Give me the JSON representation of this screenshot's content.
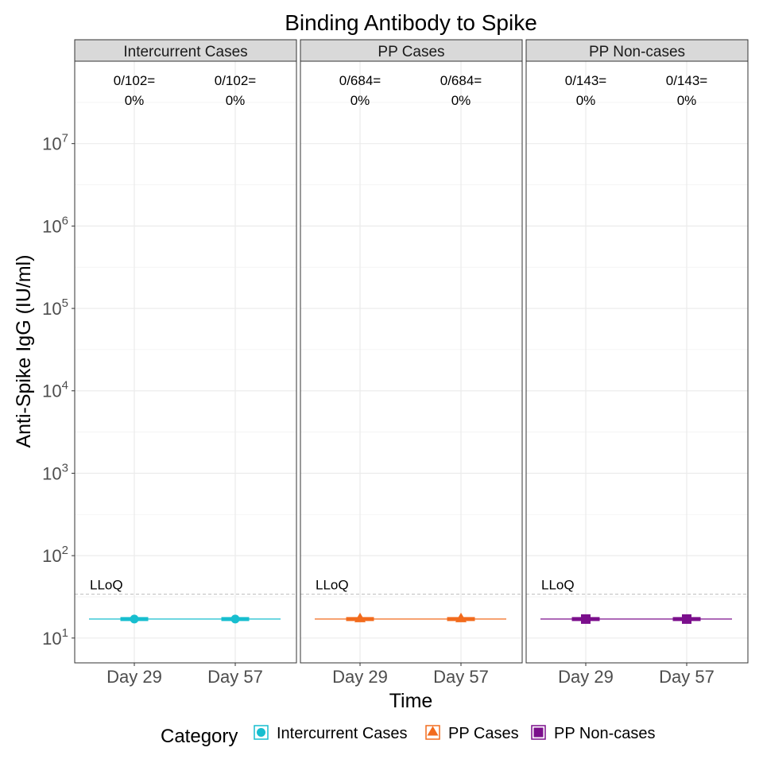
{
  "chart_data": {
    "type": "box",
    "title": "Binding Antibody to Spike",
    "xlabel": "Time",
    "ylabel": "Anti-Spike IgG (IU/ml)",
    "yscale": "log10",
    "ylim": [
      5.0,
      100000000.0
    ],
    "y_ticks": [
      {
        "value": 10,
        "base": "10",
        "exp": "1"
      },
      {
        "value": 100,
        "base": "10",
        "exp": "2"
      },
      {
        "value": 1000,
        "base": "10",
        "exp": "3"
      },
      {
        "value": 10000,
        "base": "10",
        "exp": "4"
      },
      {
        "value": 100000,
        "base": "10",
        "exp": "5"
      },
      {
        "value": 1000000,
        "base": "10",
        "exp": "6"
      },
      {
        "value": 10000000,
        "base": "10",
        "exp": "7"
      }
    ],
    "categories": [
      "Day 29",
      "Day 57"
    ],
    "lloq": {
      "value": 34,
      "label": "LLoQ"
    },
    "grid": true,
    "legend": {
      "title": "Category",
      "position": "bottom",
      "items": [
        {
          "name": "Intercurrent Cases",
          "color": "#17becf",
          "shape": "circle"
        },
        {
          "name": "PP Cases",
          "color": "#f26b1d",
          "shape": "triangle"
        },
        {
          "name": "PP Non-cases",
          "color": "#7b0f8c",
          "shape": "square"
        }
      ]
    },
    "panels": [
      {
        "label": "Intercurrent Cases",
        "color": "#17becf",
        "shape": "circle",
        "response_lines": [
          "0/102=",
          "0%"
        ],
        "response_line2": "0%",
        "boxes": [
          {
            "x": "Day 29",
            "min": 17,
            "q1": 17,
            "median": 17,
            "q3": 17,
            "max": 17
          },
          {
            "x": "Day 57",
            "min": 17,
            "q1": 17,
            "median": 17,
            "q3": 17,
            "max": 17
          }
        ]
      },
      {
        "label": "PP Cases",
        "color": "#f26b1d",
        "shape": "triangle",
        "response_lines": [
          "0/684=",
          "0%"
        ],
        "boxes": [
          {
            "x": "Day 29",
            "min": 17,
            "q1": 17,
            "median": 17,
            "q3": 17,
            "max": 17
          },
          {
            "x": "Day 57",
            "min": 17,
            "q1": 17,
            "median": 17,
            "q3": 17,
            "max": 17
          }
        ]
      },
      {
        "label": "PP Non-cases",
        "color": "#7b0f8c",
        "shape": "square",
        "response_lines": [
          "0/143=",
          "0%"
        ],
        "boxes": [
          {
            "x": "Day 29",
            "min": 17,
            "q1": 17,
            "median": 17,
            "q3": 17,
            "max": 17
          },
          {
            "x": "Day 57",
            "min": 17,
            "q1": 17,
            "median": 17,
            "q3": 17,
            "max": 17
          }
        ]
      }
    ]
  }
}
